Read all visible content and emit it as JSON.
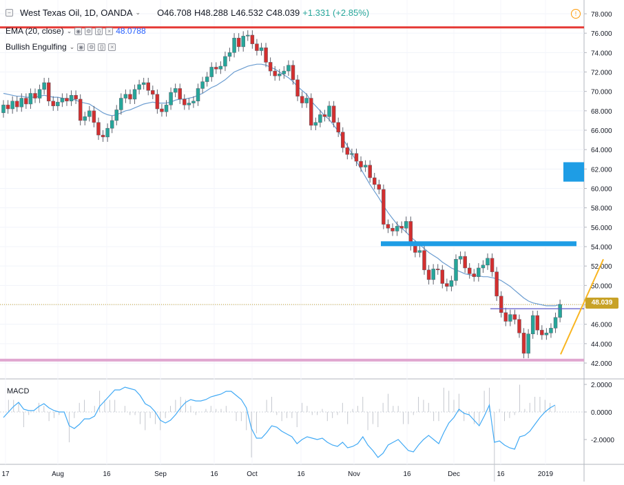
{
  "header": {
    "collapse_icon": "minus-square-icon",
    "symbol_title": "West Texas Oil, 1D, OANDA",
    "open": "O46.708",
    "high": "H48.288",
    "low": "L46.532",
    "close": "C48.039",
    "change": "+1.331 (+2.85%)",
    "change_color": "#26a69a",
    "warning_icon": "alert-circle-icon"
  },
  "indicators": [
    {
      "label": "EMA (20, close)",
      "value": "48.0788",
      "value_color": "#2962ff"
    },
    {
      "label": "Bullish Engulfing",
      "value": ""
    }
  ],
  "macd_pane": {
    "label": "MACD",
    "y_ticks": [
      "2.0000",
      "0.0000",
      "-2.0000"
    ]
  },
  "price_axis": {
    "ticks": [
      "78.000",
      "76.000",
      "74.000",
      "72.000",
      "70.000",
      "68.000",
      "66.000",
      "64.000",
      "62.000",
      "60.000",
      "58.000",
      "56.000",
      "54.000",
      "52.000",
      "50.000",
      "48.000",
      "46.000",
      "44.000",
      "42.000"
    ],
    "last_price": "48.039",
    "last_price_color": "#c8a227"
  },
  "time_axis": {
    "labels": [
      "17",
      "Aug",
      "16",
      "Sep",
      "16",
      "Oct",
      "16",
      "Nov",
      "16",
      "Dec",
      "16",
      "2019"
    ]
  },
  "colors": {
    "bull": "#26a69a",
    "bear": "#d32f2f",
    "ema": "#6a9cd0",
    "resistance_line": "#e53935",
    "support_line": "#e0a6cf",
    "zone": "#1e9de5",
    "trendline": "#f9b520"
  },
  "chart_data": {
    "type": "candlestick",
    "title": "West Texas Oil, 1D, OANDA",
    "ylim": [
      41,
      79
    ],
    "x_labels": [
      "17",
      "Aug",
      "16",
      "Sep",
      "16",
      "Oct",
      "16",
      "Nov",
      "16",
      "Dec",
      "16",
      "2019"
    ],
    "closes": [
      68.6,
      68.2,
      69.0,
      68.4,
      69.3,
      68.7,
      69.8,
      69.3,
      70.2,
      70.9,
      69.0,
      68.5,
      68.9,
      69.3,
      69.0,
      69.6,
      69.2,
      67.0,
      67.4,
      68.0,
      66.8,
      65.5,
      65.3,
      66.2,
      67.0,
      68.1,
      69.3,
      69.7,
      69.2,
      70.2,
      70.7,
      70.9,
      70.1,
      69.7,
      68.2,
      67.9,
      68.6,
      69.9,
      70.3,
      69.2,
      68.6,
      68.8,
      69.0,
      70.3,
      71.0,
      71.5,
      72.5,
      72.3,
      72.6,
      73.6,
      74.0,
      75.5,
      74.6,
      75.7,
      75.8,
      74.9,
      74.2,
      74.5,
      73.0,
      72.1,
      71.6,
      71.8,
      72.1,
      72.7,
      71.2,
      69.5,
      68.8,
      69.3,
      66.5,
      66.8,
      67.6,
      67.4,
      68.5,
      66.8,
      65.8,
      64.2,
      63.5,
      63.6,
      62.8,
      62.2,
      62.4,
      61.1,
      60.4,
      59.9,
      56.3,
      55.9,
      55.6,
      56.1,
      55.9,
      56.6,
      54.1,
      53.4,
      53.6,
      51.6,
      50.6,
      51.7,
      51.6,
      50.2,
      49.9,
      50.5,
      52.7,
      53.0,
      51.8,
      51.2,
      50.9,
      51.8,
      52.1,
      52.8,
      51.4,
      48.9,
      47.2,
      46.3,
      47.0,
      46.5,
      45.1,
      43.0,
      45.0,
      46.9,
      45.4,
      44.9,
      45.1,
      45.6,
      46.7,
      48.04
    ],
    "ema_20": [
      69.8,
      69.7,
      69.6,
      69.5,
      69.5,
      69.4,
      69.4,
      69.4,
      69.5,
      69.6,
      69.5,
      69.4,
      69.4,
      69.3,
      69.2,
      69.2,
      69.1,
      68.9,
      68.8,
      68.7,
      68.4,
      68.1,
      67.8,
      67.6,
      67.5,
      67.6,
      67.8,
      68.0,
      68.1,
      68.3,
      68.5,
      68.7,
      68.8,
      68.9,
      68.8,
      68.8,
      68.8,
      68.9,
      69.1,
      69.2,
      69.2,
      69.3,
      69.4,
      69.6,
      69.8,
      70.1,
      70.4,
      70.6,
      70.9,
      71.2,
      71.6,
      72.0,
      72.2,
      72.4,
      72.6,
      72.7,
      72.8,
      72.8,
      72.7,
      72.5,
      72.3,
      72.0,
      71.7,
      71.4,
      71.0,
      70.5,
      70.1,
      69.7,
      69.0,
      68.5,
      68.0,
      67.5,
      67.1,
      66.5,
      65.9,
      65.1,
      64.4,
      63.6,
      62.8,
      62.0,
      61.2,
      60.4,
      59.7,
      59.0,
      58.2,
      57.5,
      56.9,
      56.3,
      55.9,
      55.5,
      55.0,
      54.6,
      54.2,
      53.8,
      53.4,
      53.1,
      52.8,
      52.4,
      52.1,
      51.8,
      51.6,
      51.4,
      51.2,
      51.1,
      51.0,
      51.0,
      50.9,
      50.9,
      50.8,
      50.7,
      50.5,
      50.2,
      49.9,
      49.5,
      49.1,
      48.7,
      48.4,
      48.2,
      48.1,
      48.0,
      47.9,
      47.9,
      47.9,
      48.08
    ],
    "macd": [
      -0.4,
      0.0,
      0.4,
      0.7,
      0.2,
      0.1,
      0.1,
      0.4,
      0.6,
      0.3,
      0.1,
      0.0,
      0.0,
      -1.0,
      -1.2,
      -0.9,
      -0.5,
      -0.5,
      -0.3,
      0.4,
      0.8,
      1.2,
      1.6,
      1.6,
      1.8,
      1.7,
      1.6,
      1.2,
      0.6,
      0.4,
      0.0,
      -0.6,
      -0.8,
      -0.6,
      -0.2,
      0.3,
      0.7,
      0.9,
      0.8,
      0.8,
      0.9,
      1.1,
      1.2,
      1.3,
      1.5,
      1.5,
      1.2,
      0.9,
      0.3,
      -1.2,
      -1.9,
      -1.9,
      -1.5,
      -1.0,
      -1.1,
      -1.4,
      -1.6,
      -1.8,
      -2.3,
      -2.0,
      -1.8,
      -1.9,
      -2.0,
      -1.9,
      -2.2,
      -2.4,
      -2.5,
      -2.2,
      -2.6,
      -2.5,
      -2.3,
      -1.8,
      -2.4,
      -2.8,
      -3.3,
      -3.0,
      -2.4,
      -2.2,
      -2.0,
      -2.4,
      -2.8,
      -2.9,
      -2.4,
      -2.0,
      -1.7,
      -2.0,
      -2.3,
      -1.5,
      -0.8,
      -0.4,
      0.2,
      -0.1,
      -0.2,
      -0.6,
      -1.0,
      -0.3,
      0.5,
      -2.2,
      -2.1,
      -2.4,
      -2.6,
      -2.7,
      -1.8,
      -1.7,
      -1.4,
      -0.9,
      -0.4,
      0.0,
      0.3,
      0.5
    ],
    "resistance_level": 76.6,
    "support_level": 42.3,
    "zone_level": 54.3,
    "small_zone": [
      60.7,
      62.7
    ],
    "breakout_level": 47.6
  }
}
